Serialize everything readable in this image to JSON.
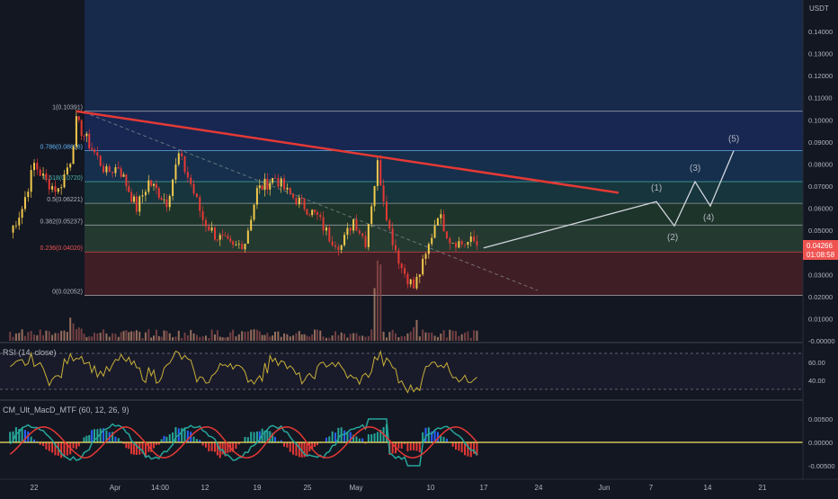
{
  "pair_label": "USDT",
  "price_axis": {
    "ticks": [
      "0.14000",
      "0.13000",
      "0.12000",
      "0.11000",
      "0.10000",
      "0.09000",
      "0.08000",
      "0.07000",
      "0.06000",
      "0.05000",
      "0.04000",
      "0.03000",
      "0.02000",
      "0.01000",
      "-0.00000"
    ],
    "current_price": "0.04266",
    "countdown": "01:08:58",
    "current_color": "#ef5350"
  },
  "x_axis": {
    "ticks": [
      "22",
      "Apr",
      "14:00",
      "12",
      "19",
      "25",
      "May",
      "10",
      "17",
      "24",
      "Jun",
      "7",
      "14",
      "21"
    ]
  },
  "fib_levels": [
    {
      "label": "1(0.10391)",
      "value": 0.10391,
      "color": "#b2b5be",
      "zone_color": "#2962ff"
    },
    {
      "label": "0.786(0.08606)",
      "value": 0.08606,
      "color": "#64b5f6",
      "zone_color": "#1e88e5"
    },
    {
      "label": "0.618(0.0720)",
      "value": 0.072,
      "color": "#4db6ac",
      "zone_color": "#26a69a"
    },
    {
      "label": "0.5(0.06221)",
      "value": 0.06221,
      "color": "#b2b5be",
      "zone_color": "#43a047"
    },
    {
      "label": "0.382(0.05237)",
      "value": 0.05237,
      "color": "#b2b5be",
      "zone_color": "#66bb6a"
    },
    {
      "label": "0.236(0.04020)",
      "value": 0.0402,
      "color": "#ef5350",
      "zone_color": "#e53935"
    },
    {
      "label": "0(0.02052)",
      "value": 0.02052,
      "color": "#b2b5be",
      "zone_color": "#787b86"
    }
  ],
  "wave_labels": [
    "(1)",
    "(2)",
    "(3)",
    "(4)",
    "(5)"
  ],
  "rsi": {
    "title": "RSI (14, close)",
    "ticks": [
      "60.00",
      "40.00"
    ],
    "line_color": "#c9b037"
  },
  "macd": {
    "title": "CM_Ult_MacD_MTF (60, 12, 26, 9)",
    "ticks": [
      "0.00500",
      "0.00000",
      "-0.00500"
    ],
    "zero_color": "#f5e663"
  },
  "chart_data": {
    "type": "candlestick",
    "price_range": [
      -0.005,
      0.15
    ],
    "trendline": {
      "from": {
        "x": "Mar 29",
        "y": 0.1039
      },
      "to": {
        "x": "Jun 27",
        "y": 0.067
      },
      "color": "#e53935"
    },
    "projected_waves": [
      {
        "label": "(1)",
        "y": 0.063
      },
      {
        "label": "(2)",
        "y": 0.052
      },
      {
        "label": "(3)",
        "y": 0.072
      },
      {
        "label": "(4)",
        "y": 0.061
      },
      {
        "label": "(5)",
        "y": 0.086
      }
    ],
    "price_path": [
      {
        "x": "Mar 18",
        "y": 0.049
      },
      {
        "x": "Mar 20",
        "y": 0.06
      },
      {
        "x": "Mar 22",
        "y": 0.08
      },
      {
        "x": "Mar 24",
        "y": 0.072
      },
      {
        "x": "Mar 26",
        "y": 0.068
      },
      {
        "x": "Mar 28",
        "y": 0.082
      },
      {
        "x": "Mar 29",
        "y": 0.099
      },
      {
        "x": "Apr 1",
        "y": 0.085
      },
      {
        "x": "Apr 3",
        "y": 0.076
      },
      {
        "x": "Apr 5",
        "y": 0.079
      },
      {
        "x": "Apr 8",
        "y": 0.06
      },
      {
        "x": "Apr 10",
        "y": 0.072
      },
      {
        "x": "Apr 13",
        "y": 0.063
      },
      {
        "x": "Apr 15",
        "y": 0.084
      },
      {
        "x": "Apr 17",
        "y": 0.071
      },
      {
        "x": "Apr 19",
        "y": 0.055
      },
      {
        "x": "Apr 21",
        "y": 0.048
      },
      {
        "x": "Apr 24",
        "y": 0.042
      },
      {
        "x": "Apr 26",
        "y": 0.045
      },
      {
        "x": "Apr 28",
        "y": 0.068
      },
      {
        "x": "May 1",
        "y": 0.074
      },
      {
        "x": "May 3",
        "y": 0.067
      },
      {
        "x": "May 5",
        "y": 0.063
      },
      {
        "x": "May 8",
        "y": 0.056
      },
      {
        "x": "May 10",
        "y": 0.047
      },
      {
        "x": "May 12",
        "y": 0.043
      },
      {
        "x": "May 14",
        "y": 0.055
      },
      {
        "x": "May 16",
        "y": 0.045
      },
      {
        "x": "May 18",
        "y": 0.08
      },
      {
        "x": "May 20",
        "y": 0.05
      },
      {
        "x": "May 22",
        "y": 0.033
      },
      {
        "x": "May 24",
        "y": 0.024
      },
      {
        "x": "May 26",
        "y": 0.038
      },
      {
        "x": "May 28",
        "y": 0.058
      },
      {
        "x": "May 30",
        "y": 0.046
      },
      {
        "x": "Jun 1",
        "y": 0.044
      },
      {
        "x": "Jun 3",
        "y": 0.045
      },
      {
        "x": "Jun 4",
        "y": 0.042
      }
    ],
    "rsi_range": [
      20,
      80
    ],
    "rsi_bands": [
      70,
      30
    ],
    "macd_range": [
      -0.007,
      0.007
    ]
  }
}
